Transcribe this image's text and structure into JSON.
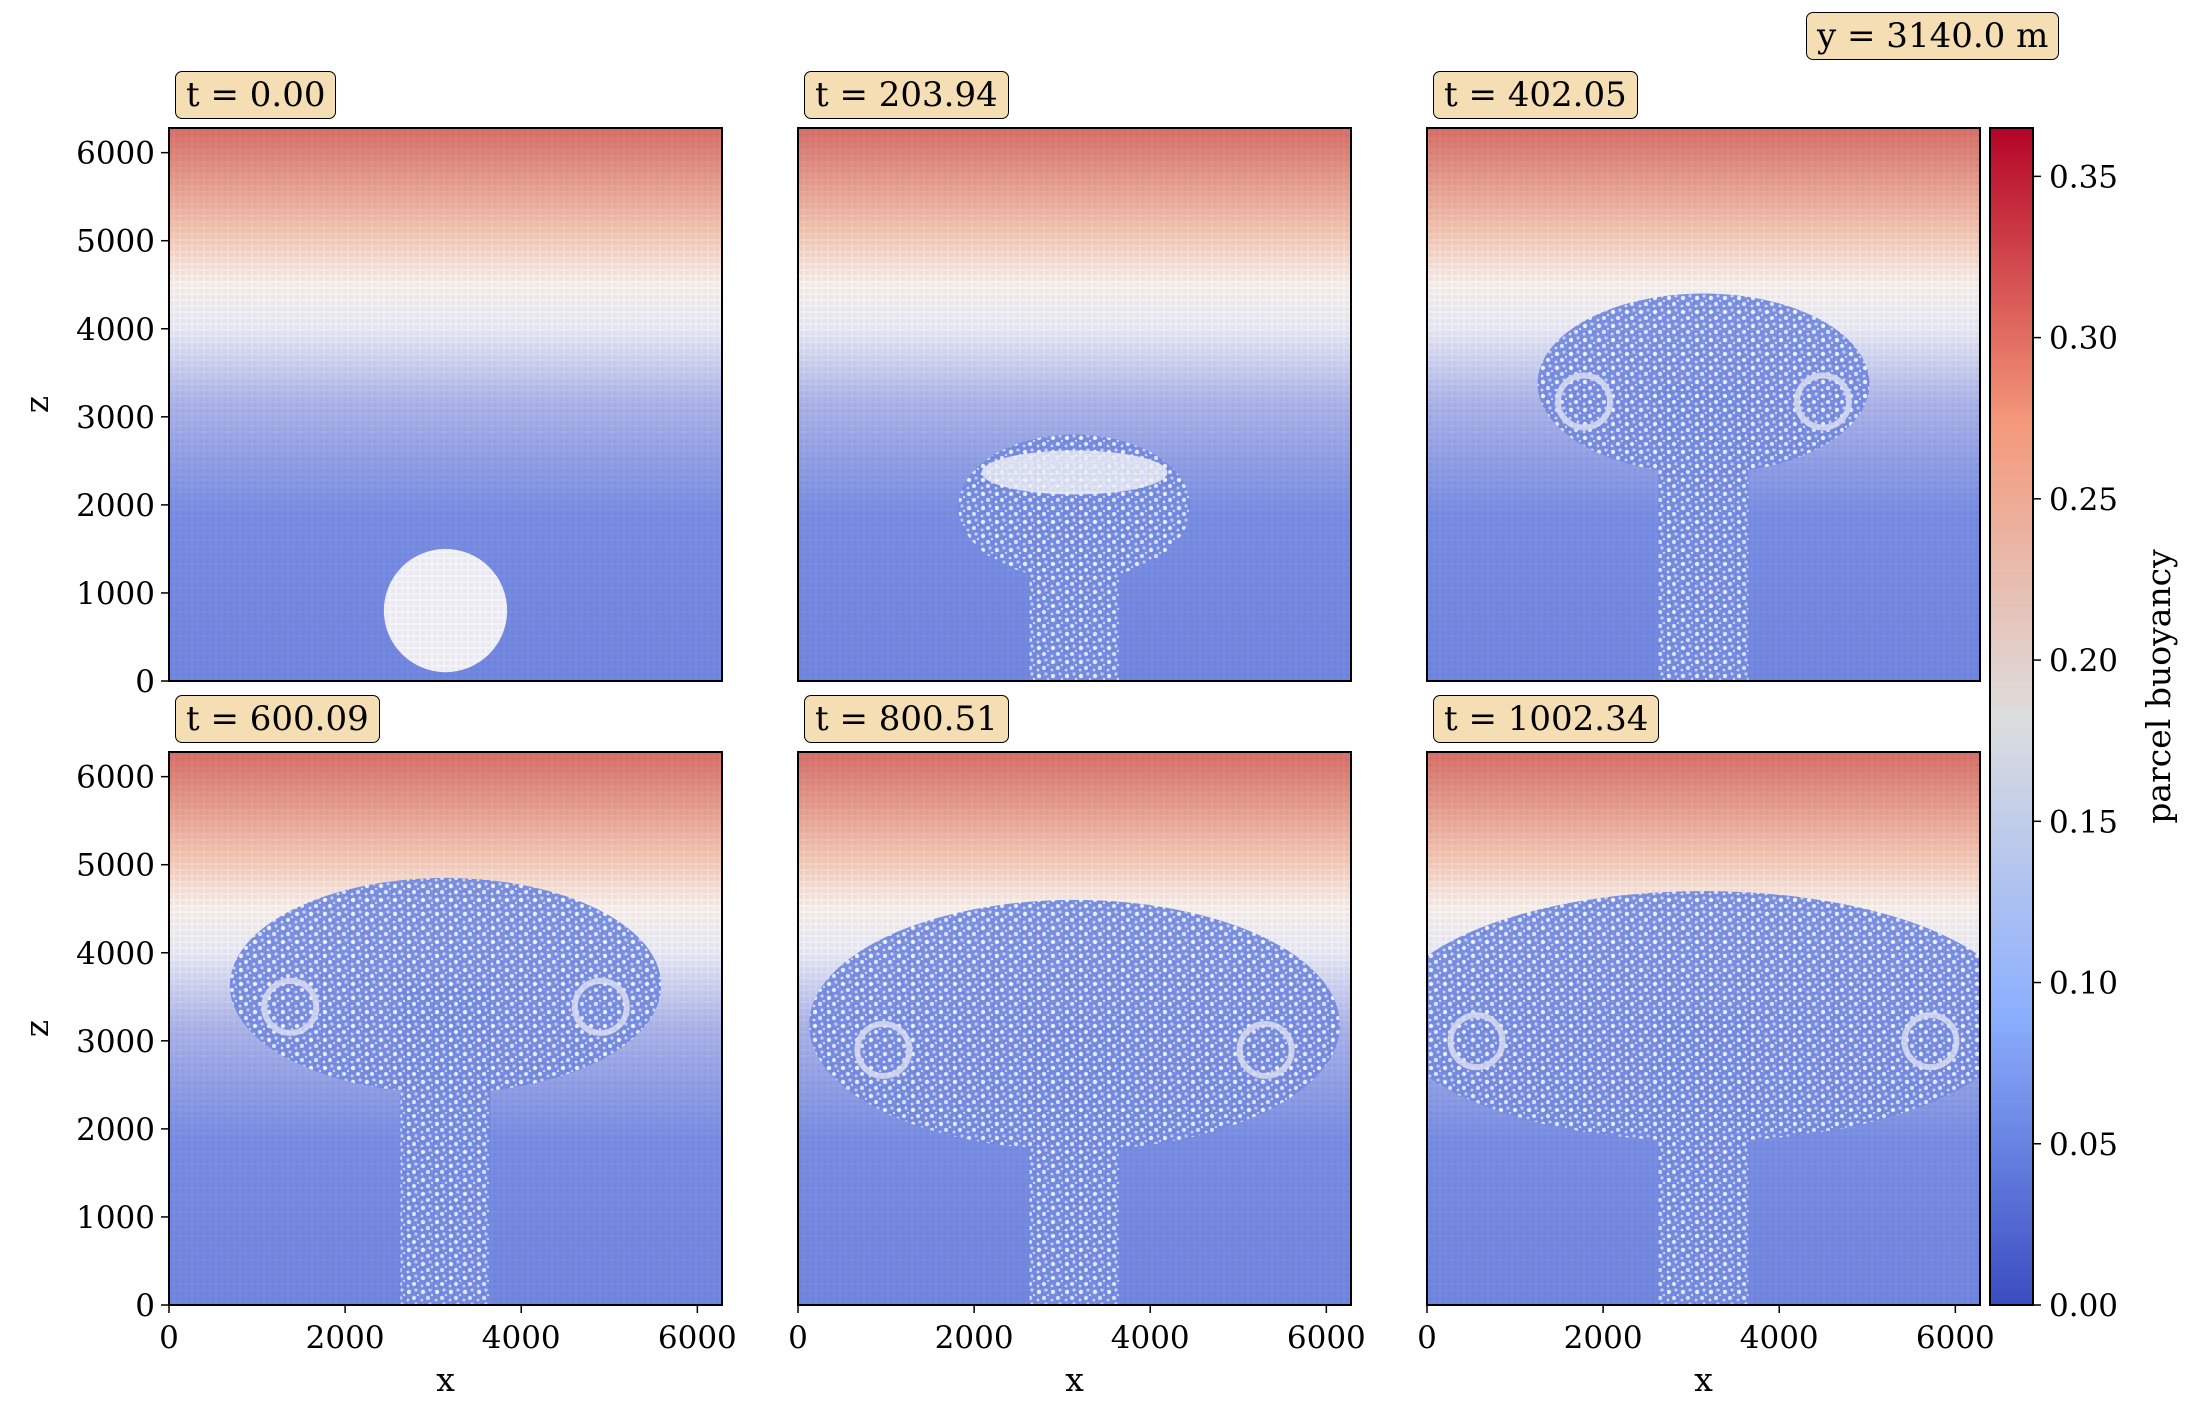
{
  "chart_data": {
    "type": "heatmap",
    "annotation": "y = 3140.0 m",
    "xlabel": "x",
    "ylabel": "z",
    "xlim": [
      0,
      6280
    ],
    "ylim": [
      0,
      6280
    ],
    "x_ticks": [
      0,
      2000,
      4000,
      6000
    ],
    "y_ticks": [
      0,
      1000,
      2000,
      3000,
      4000,
      5000,
      6000
    ],
    "colorbar": {
      "label": "parcel buoyancy",
      "colormap": "coolwarm",
      "range": [
        0.0,
        0.365
      ],
      "ticks": [
        "0.00",
        "0.05",
        "0.10",
        "0.15",
        "0.20",
        "0.25",
        "0.30",
        "0.35"
      ]
    },
    "panels": [
      {
        "time_label": "t = 0.00",
        "t": 0.0,
        "plume_top_z": 1500,
        "bubble_center": [
          3140,
          800
        ],
        "bubble_radius": 700
      },
      {
        "time_label": "t = 203.94",
        "t": 203.94,
        "plume_top_z": 2800
      },
      {
        "time_label": "t = 402.05",
        "t": 402.05,
        "plume_top_z": 4400
      },
      {
        "time_label": "t = 600.09",
        "t": 600.09,
        "plume_top_z": 4850
      },
      {
        "time_label": "t = 800.51",
        "t": 800.51,
        "plume_top_z": 4600
      },
      {
        "time_label": "t = 1002.34",
        "t": 1002.34,
        "plume_top_z": 4700
      }
    ]
  },
  "colors": {
    "cold": "#3b4cc0",
    "neutral": "#dddddd",
    "warm": "#b40426",
    "label_box": "#f5deb3"
  }
}
